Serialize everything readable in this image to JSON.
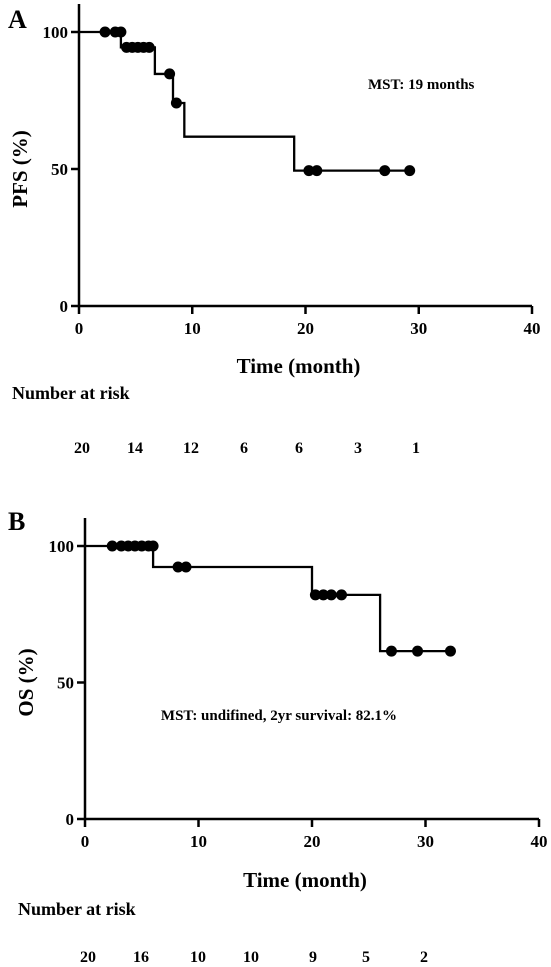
{
  "chart_data": [
    {
      "panel": "A",
      "type": "line",
      "subtype": "kaplan-meier",
      "ylabel": "PFS (%)",
      "xlabel": "Time (month)",
      "xlim": [
        0,
        40
      ],
      "ylim": [
        0,
        100
      ],
      "xticks": [
        0,
        10,
        20,
        30,
        40
      ],
      "yticks": [
        0,
        50,
        100
      ],
      "annotation": "MST: 19 months",
      "step": {
        "x": [
          0,
          3.7,
          6.7,
          8.3,
          9.3,
          19.0,
          29.3
        ],
        "y": [
          100,
          94.4,
          84.7,
          74.1,
          61.8,
          49.4,
          49.4
        ]
      },
      "censored": {
        "x": [
          2.3,
          3.2,
          3.7,
          4.2,
          4.7,
          5.2,
          5.7,
          6.2,
          8.0,
          8.6,
          20.3,
          21.0,
          27.0,
          29.2
        ],
        "y": [
          100,
          100,
          100,
          94.4,
          94.4,
          94.4,
          94.4,
          94.4,
          84.7,
          74.1,
          49.4,
          49.4,
          49.4,
          49.4
        ]
      },
      "risk_table": {
        "title": "Number at risk",
        "values": [
          "20",
          "14",
          "12",
          "6",
          "6",
          "3",
          "1"
        ]
      }
    },
    {
      "panel": "B",
      "type": "line",
      "subtype": "kaplan-meier",
      "ylabel": "OS (%)",
      "xlabel": "Time (month)",
      "xlim": [
        0,
        40
      ],
      "ylim": [
        0,
        100
      ],
      "xticks": [
        0,
        10,
        20,
        30,
        40
      ],
      "yticks": [
        0,
        50,
        100
      ],
      "annotation": "MST: undifined,  2yr survival: 82.1%",
      "step": {
        "x": [
          0,
          6.0,
          20.0,
          26.0,
          32.2
        ],
        "y": [
          100,
          92.3,
          82.1,
          61.5,
          61.5
        ]
      },
      "censored": {
        "x": [
          2.4,
          3.2,
          3.8,
          4.4,
          5.0,
          5.6,
          6.0,
          8.2,
          8.9,
          20.3,
          21.0,
          21.7,
          22.6,
          27.0,
          29.3,
          32.2
        ],
        "y": [
          100,
          100,
          100,
          100,
          100,
          100,
          100,
          92.3,
          92.3,
          82.1,
          82.1,
          82.1,
          82.1,
          61.5,
          61.5,
          61.5
        ]
      },
      "risk_table": {
        "title": "Number at risk",
        "values": [
          "20",
          "16",
          "10",
          "10",
          "9",
          "5",
          "2"
        ]
      }
    }
  ]
}
